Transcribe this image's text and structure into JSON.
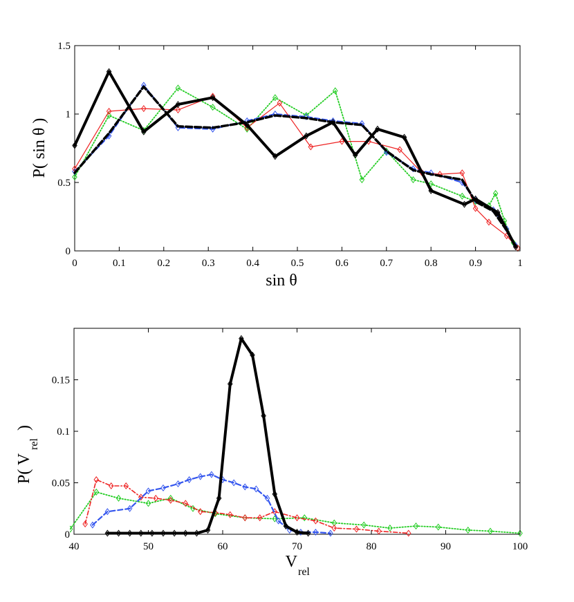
{
  "chart_data": [
    {
      "type": "line",
      "id": "top",
      "title": "",
      "xlabel": "sin θ",
      "ylabel": "P( sin θ )",
      "xlim": [
        0,
        1
      ],
      "ylim": [
        0,
        1.5
      ],
      "xticks": [
        0,
        0.1,
        0.2,
        0.3,
        0.4,
        0.5,
        0.6,
        0.7,
        0.8,
        0.9,
        1
      ],
      "xticklabels": [
        "0",
        "0.1",
        "0.2",
        "0.3",
        "0.4",
        "0.5",
        "0.6",
        "0.7",
        "0.8",
        "0.9",
        "1"
      ],
      "yticks": [
        0,
        0.5,
        1,
        1.5
      ],
      "yticklabels": [
        "0",
        "0.5",
        "1",
        "1.5"
      ],
      "grid": false,
      "series": [
        {
          "name": "green-dotted",
          "color": "#22cc22",
          "style": "dotted",
          "marker": "diamond",
          "x": [
            0,
            0.077,
            0.155,
            0.232,
            0.31,
            0.387,
            0.45,
            0.52,
            0.585,
            0.645,
            0.7,
            0.76,
            0.8,
            0.87,
            0.9,
            0.93,
            0.945,
            0.965,
            0.985,
            0.995
          ],
          "y": [
            0.54,
            0.99,
            0.88,
            1.19,
            1.05,
            0.89,
            1.12,
            0.99,
            1.17,
            0.52,
            0.73,
            0.52,
            0.49,
            0.4,
            0.36,
            0.33,
            0.42,
            0.22,
            0.06,
            0.02
          ]
        },
        {
          "name": "blue-dashed",
          "color": "#3355ee",
          "style": "dashed",
          "marker": "diamond",
          "x": [
            0,
            0.077,
            0.155,
            0.232,
            0.31,
            0.387,
            0.45,
            0.52,
            0.58,
            0.645,
            0.7,
            0.76,
            0.8,
            0.87,
            0.9,
            0.94,
            0.97,
            0.99
          ],
          "y": [
            0.58,
            0.84,
            1.21,
            0.9,
            0.89,
            0.95,
            1.0,
            0.98,
            0.95,
            0.93,
            0.72,
            0.6,
            0.57,
            0.5,
            0.37,
            0.3,
            0.16,
            0.04
          ]
        },
        {
          "name": "red-solid-plus",
          "color": "#ee2222",
          "style": "solid",
          "marker": "diamond",
          "x": [
            0,
            0.077,
            0.155,
            0.232,
            0.31,
            0.387,
            0.46,
            0.53,
            0.6,
            0.66,
            0.73,
            0.78,
            0.82,
            0.87,
            0.9,
            0.93,
            0.97,
            0.995
          ],
          "y": [
            0.6,
            1.02,
            1.04,
            1.03,
            1.13,
            0.9,
            1.08,
            0.76,
            0.8,
            0.8,
            0.74,
            0.57,
            0.56,
            0.57,
            0.31,
            0.21,
            0.11,
            0.02
          ]
        },
        {
          "name": "black-dashed",
          "color": "#000000",
          "style": "dashed-thick",
          "marker": "none",
          "x": [
            0,
            0.077,
            0.155,
            0.232,
            0.31,
            0.387,
            0.45,
            0.52,
            0.58,
            0.645,
            0.7,
            0.76,
            0.8,
            0.87,
            0.9,
            0.94,
            0.97,
            0.99
          ],
          "y": [
            0.57,
            0.86,
            1.2,
            0.91,
            0.9,
            0.94,
            0.99,
            0.97,
            0.94,
            0.92,
            0.73,
            0.59,
            0.56,
            0.52,
            0.36,
            0.29,
            0.15,
            0.03
          ]
        },
        {
          "name": "black-solid",
          "color": "#000000",
          "style": "solid-thick",
          "marker": "diamond",
          "x": [
            0,
            0.077,
            0.155,
            0.232,
            0.31,
            0.387,
            0.45,
            0.52,
            0.58,
            0.63,
            0.68,
            0.74,
            0.8,
            0.875,
            0.9,
            0.95,
            0.99
          ],
          "y": [
            0.77,
            1.31,
            0.87,
            1.07,
            1.12,
            0.92,
            0.69,
            0.84,
            0.94,
            0.7,
            0.89,
            0.83,
            0.44,
            0.34,
            0.38,
            0.28,
            0.03
          ]
        }
      ]
    },
    {
      "type": "line",
      "id": "bottom",
      "title": "",
      "xlabel": "V",
      "xlabel_sub": "rel",
      "ylabel": "P( V",
      "ylabel_sub": "rel",
      "ylabel_close": " )",
      "xlim": [
        40,
        100
      ],
      "ylim": [
        0,
        0.2
      ],
      "xticks": [
        40,
        50,
        60,
        70,
        80,
        90,
        100
      ],
      "xticklabels": [
        "40",
        "50",
        "60",
        "70",
        "80",
        "90",
        "100"
      ],
      "yticks": [
        0,
        0.05,
        0.1,
        0.15
      ],
      "yticklabels": [
        "0",
        "0.05",
        "0.1",
        "0.15"
      ],
      "grid": false,
      "series": [
        {
          "name": "green-dotted",
          "color": "#22cc22",
          "style": "dotted",
          "marker": "diamond",
          "x": [
            39.5,
            43,
            46,
            50,
            53,
            56,
            59,
            63,
            67,
            71,
            75,
            79,
            82.5,
            86,
            89,
            93,
            96,
            100
          ],
          "y": [
            0.005,
            0.041,
            0.035,
            0.03,
            0.035,
            0.025,
            0.02,
            0.016,
            0.015,
            0.016,
            0.011,
            0.009,
            0.006,
            0.008,
            0.007,
            0.004,
            0.003,
            0.001
          ]
        },
        {
          "name": "red-dashdot",
          "color": "#ee2222",
          "style": "dashdot",
          "marker": "diamond",
          "x": [
            41.5,
            43,
            45,
            47,
            49,
            51,
            53,
            55,
            57,
            59,
            61,
            63,
            65,
            67,
            70,
            72.5,
            75,
            78,
            81,
            85
          ],
          "y": [
            0.01,
            0.053,
            0.047,
            0.047,
            0.036,
            0.035,
            0.033,
            0.03,
            0.022,
            0.021,
            0.019,
            0.016,
            0.016,
            0.022,
            0.016,
            0.013,
            0.006,
            0.005,
            0.003,
            0.001
          ]
        },
        {
          "name": "blue-dashed",
          "color": "#3355ee",
          "style": "dashed",
          "marker": "diamond",
          "x": [
            42.5,
            44.5,
            47.5,
            50,
            52,
            54,
            55.5,
            57,
            58.5,
            60,
            61.5,
            63,
            64.5,
            66,
            67.5,
            69,
            70.5,
            72.5,
            74.5
          ],
          "y": [
            0.009,
            0.022,
            0.025,
            0.042,
            0.045,
            0.049,
            0.053,
            0.056,
            0.058,
            0.053,
            0.05,
            0.046,
            0.044,
            0.035,
            0.013,
            0.004,
            0.002,
            0.002,
            0.001
          ]
        },
        {
          "name": "black-solid",
          "color": "#000000",
          "style": "solid-thick",
          "marker": "diamond",
          "x": [
            44.5,
            46,
            47.5,
            49,
            50.5,
            52,
            53.5,
            55,
            56.5,
            58,
            59.5,
            61,
            62.5,
            64,
            65.5,
            67,
            68.5,
            70,
            71.5
          ],
          "y": [
            0.001,
            0.001,
            0.001,
            0.001,
            0.001,
            0.001,
            0.001,
            0.001,
            0.001,
            0.004,
            0.035,
            0.146,
            0.19,
            0.174,
            0.115,
            0.039,
            0.008,
            0.002,
            0.001
          ]
        }
      ]
    }
  ]
}
